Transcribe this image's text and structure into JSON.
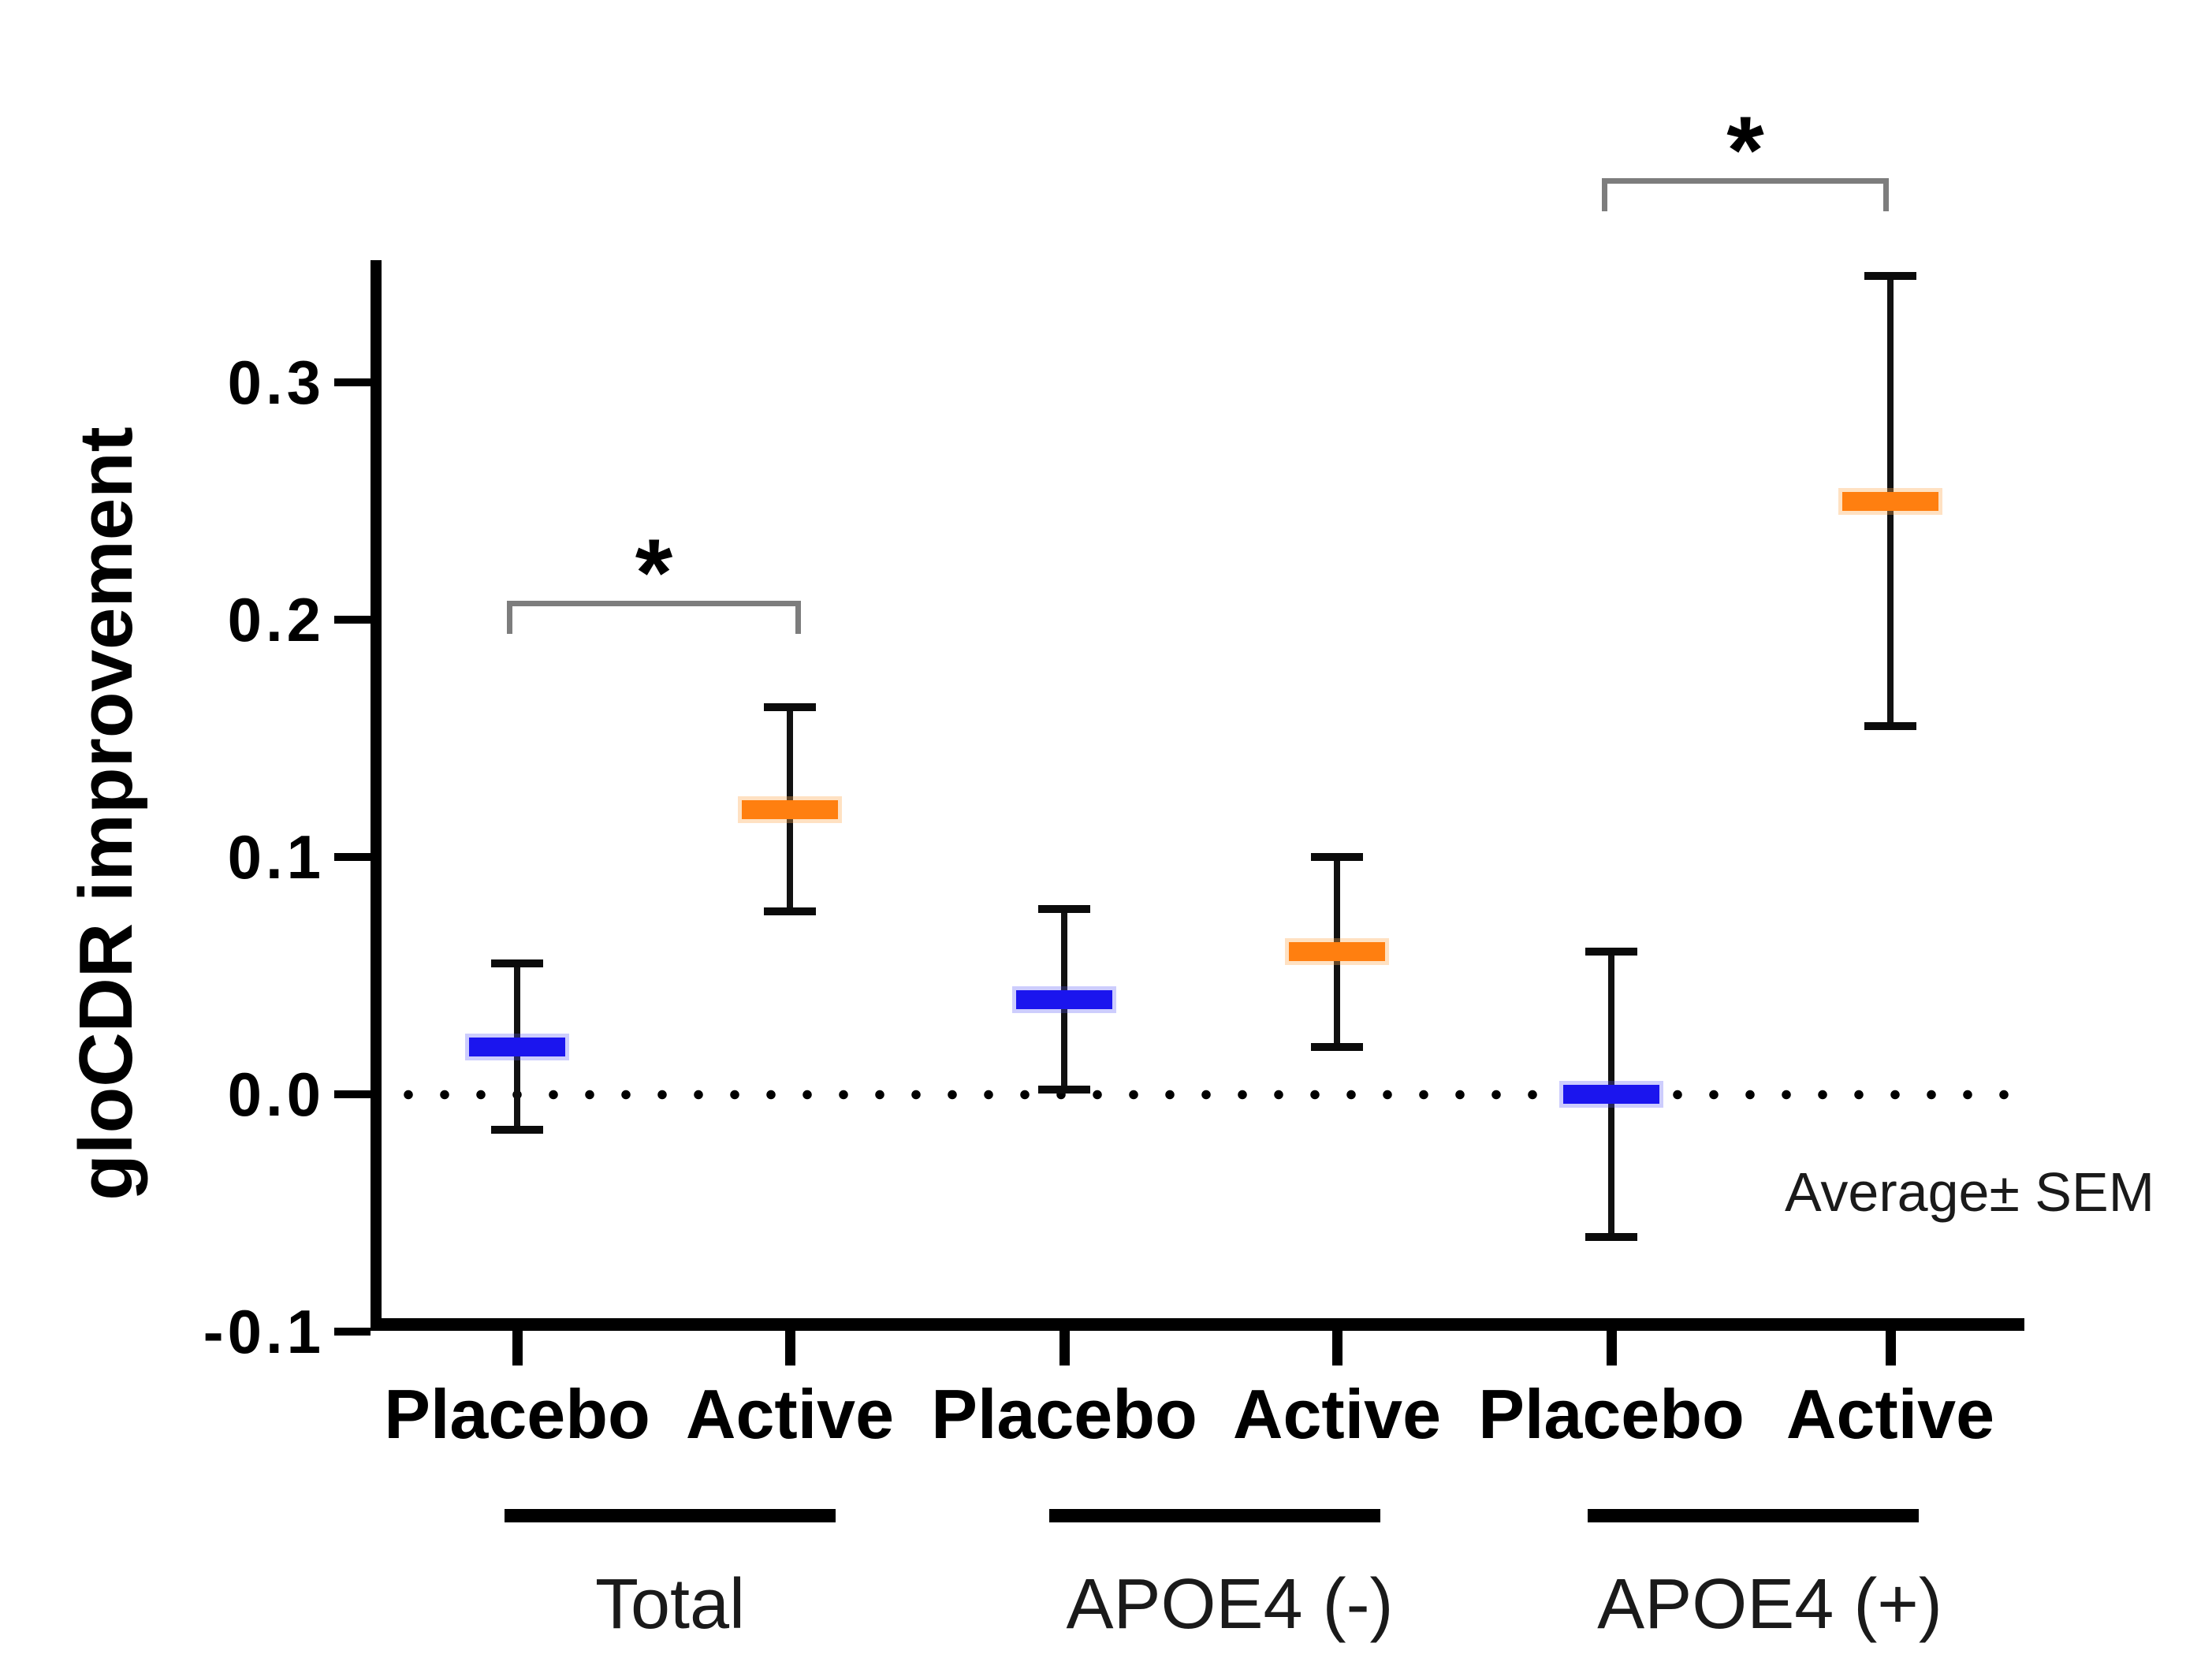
{
  "chart_data": {
    "type": "errorbar",
    "title": "",
    "ylabel": "gloCDR improvement",
    "xlabel": "",
    "ylim": [
      -0.1,
      0.35
    ],
    "grid": false,
    "zero_reference_line": 0.0,
    "zero_line_style": "dotted",
    "legend_note": "Average± SEM",
    "yticks": [
      "0.3",
      "0.2",
      "0.1",
      "0.0",
      "-0.1"
    ],
    "ytick_values": [
      0.3,
      0.2,
      0.1,
      0.0,
      -0.1
    ],
    "conditions": [
      "Placebo",
      "Active"
    ],
    "colors": {
      "placebo_marker": "#1b15ee",
      "active_marker": "#ff7f10",
      "bracket": "#7d7d7d",
      "axis": "#000000"
    },
    "groups": [
      {
        "label": "Total",
        "points": [
          {
            "condition": "Placebo",
            "mean": 0.02,
            "sem": 0.035
          },
          {
            "condition": "Active",
            "mean": 0.12,
            "sem": 0.043
          }
        ],
        "significance": "*"
      },
      {
        "label": "APOE4 (-)",
        "points": [
          {
            "condition": "Placebo",
            "mean": 0.04,
            "sem": 0.038
          },
          {
            "condition": "Active",
            "mean": 0.06,
            "sem": 0.04
          }
        ],
        "significance": null
      },
      {
        "label": "APOE4 (+)",
        "points": [
          {
            "condition": "Placebo",
            "mean": 0.0,
            "sem": 0.06
          },
          {
            "condition": "Active",
            "mean": 0.25,
            "sem": 0.095
          }
        ],
        "significance": "*"
      }
    ]
  }
}
